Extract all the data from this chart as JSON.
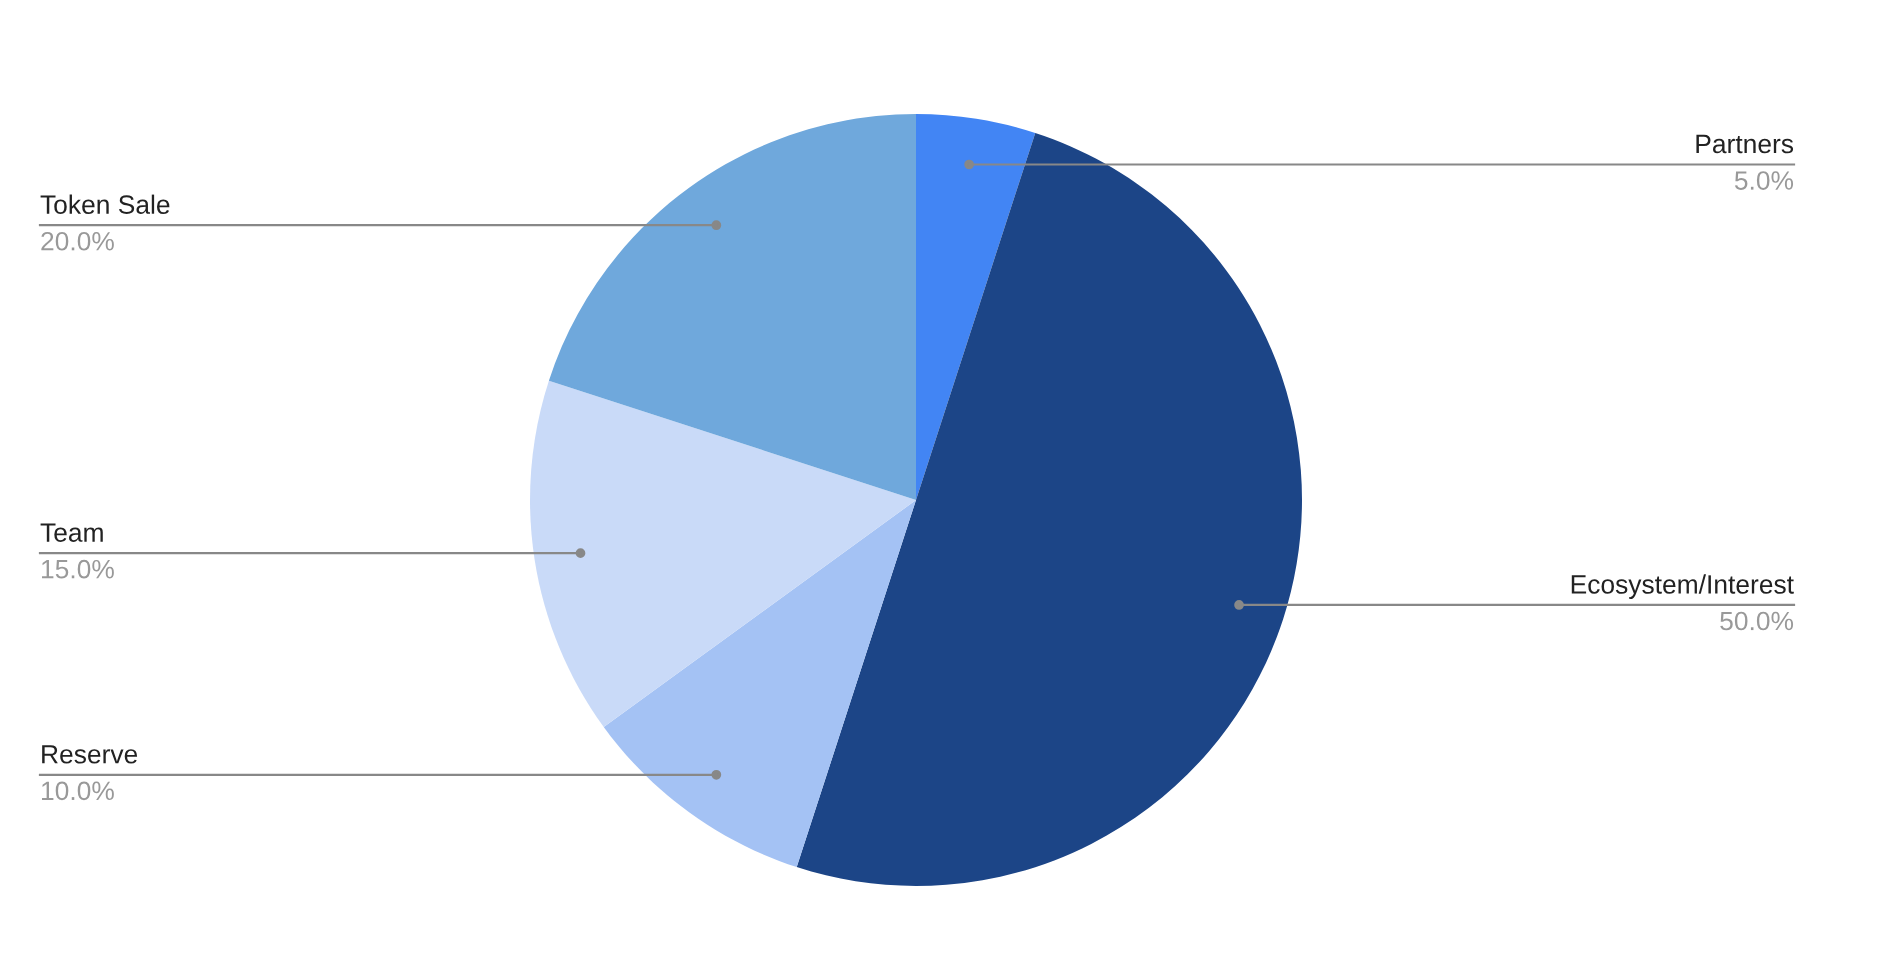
{
  "chart_data": {
    "type": "pie",
    "categories": [
      "Partners",
      "Ecosystem/Interest",
      "Reserve",
      "Team",
      "Token Sale"
    ],
    "values": [
      5,
      50,
      10,
      15,
      20
    ],
    "value_labels": [
      "5.0%",
      "50.0%",
      "10.0%",
      "15.0%",
      "20.0%"
    ],
    "colors": [
      "#4285f4",
      "#1c4587",
      "#a4c2f4",
      "#c9daf8",
      "#6fa8dc"
    ]
  }
}
